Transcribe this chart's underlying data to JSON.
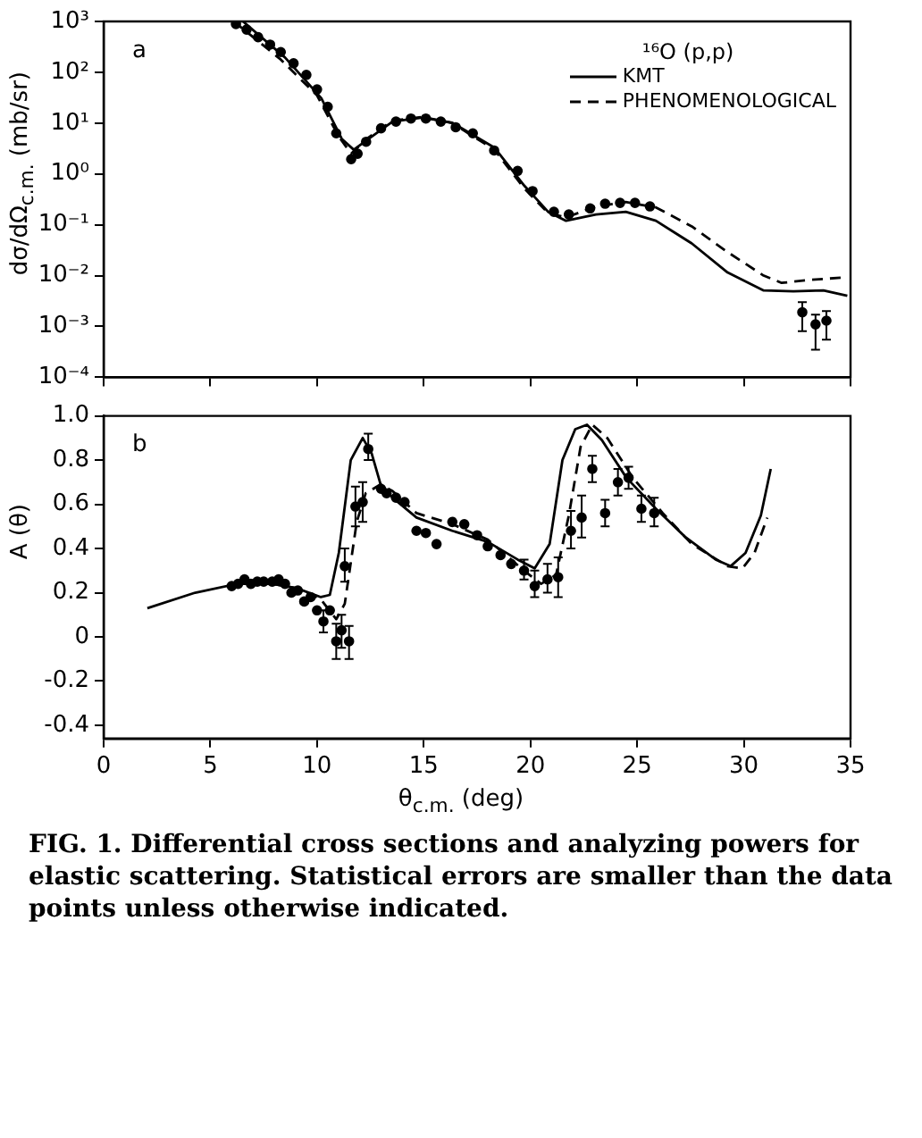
{
  "chart_data": [
    {
      "type": "line",
      "ylabel": "dσ/dΩ$_{c.m.}$ (mb/sr)",
      "legend_title": "¹⁶O (p,p)",
      "legend": "top right",
      "log": "y",
      "grid": false,
      "tick_labels": "y",
      "annotations": [
        "a"
      ],
      "xlim": [
        0,
        35
      ],
      "xticks": [
        0,
        5,
        10,
        15,
        20,
        25,
        30,
        35
      ],
      "ylim": [
        0.0001,
        1000
      ],
      "yticks": [
        {
          "value": 1000,
          "label": "10³"
        },
        {
          "value": 100,
          "label": "10²"
        },
        {
          "value": 10,
          "label": "10¹"
        },
        {
          "value": 1,
          "label": "10⁰"
        },
        {
          "value": 0.1,
          "label": "10⁻¹"
        },
        {
          "value": 0.01,
          "label": "10⁻²"
        },
        {
          "value": 0.001,
          "label": "10⁻³"
        },
        {
          "value": 0.0001,
          "label": "10⁻⁴"
        }
      ],
      "series": [
        {
          "name": "KMT",
          "color": "#000000",
          "line_style": "solid",
          "marker": "none",
          "x": [
            6.53,
            8.5,
            10.2,
            11.16,
            11.72,
            12.42,
            13.54,
            14.94,
            16.34,
            18.31,
            19.71,
            20.83,
            21.67,
            23.07,
            24.47,
            25.88,
            27.56,
            29.24,
            30.93,
            32.32,
            33.73,
            34.85
          ],
          "values": [
            1000,
            195,
            31,
            4.9,
            3.0,
            4.9,
            10.7,
            12.9,
            10.2,
            3.3,
            0.59,
            0.18,
            0.12,
            0.16,
            0.18,
            0.12,
            0.043,
            0.0115,
            0.0051,
            0.0049,
            0.0051,
            0.004
          ]
        },
        {
          "name": "PHENOMENOLOGICAL",
          "color": "#000000",
          "line_style": "dashed",
          "marker": "none",
          "x": [
            6.1,
            8.3,
            10.0,
            11.0,
            11.6,
            12.3,
            13.54,
            14.94,
            16.34,
            18.31,
            19.71,
            20.83,
            21.67,
            23.07,
            24.47,
            25.88,
            27.56,
            29.24,
            30.93,
            31.77,
            33.17,
            34.85
          ],
          "values": [
            1000,
            178,
            35,
            5.6,
            2.5,
            4.8,
            11.2,
            13.2,
            10,
            3.0,
            0.52,
            0.17,
            0.14,
            0.23,
            0.28,
            0.22,
            0.093,
            0.029,
            0.01,
            0.0072,
            0.0083,
            0.0093
          ]
        },
        {
          "type": "scatter",
          "color": "#000000",
          "marker": "circle",
          "x": [
            6.2,
            6.7,
            7.24,
            7.8,
            8.3,
            8.9,
            9.5,
            10.0,
            10.5,
            10.9,
            11.6,
            11.9,
            12.3,
            13.0,
            13.7,
            14.4,
            15.1,
            15.8,
            16.5,
            17.3,
            18.3,
            19.4,
            20.1,
            21.1,
            21.8,
            22.8,
            23.5,
            24.2,
            24.9,
            25.6,
            32.74,
            33.36,
            33.87
          ],
          "values": [
            890,
            690,
            490,
            350,
            250,
            150,
            89,
            46,
            21,
            6.3,
            1.95,
            2.5,
            4.3,
            7.9,
            10.7,
            12.3,
            12.3,
            10.7,
            8.3,
            6.3,
            2.9,
            1.15,
            0.46,
            0.18,
            0.16,
            0.21,
            0.26,
            0.27,
            0.27,
            0.23,
            0.0019,
            0.0011,
            0.0013
          ],
          "errors": [
            null,
            null,
            null,
            null,
            null,
            null,
            null,
            null,
            null,
            null,
            null,
            null,
            null,
            null,
            null,
            null,
            null,
            null,
            null,
            null,
            null,
            null,
            null,
            null,
            null,
            null,
            null,
            null,
            null,
            null,
            [
              0.00081,
              0.003
            ],
            [
              0.00035,
              0.0017
            ],
            [
              0.00055,
              0.002
            ]
          ]
        }
      ]
    },
    {
      "type": "line",
      "ylabel": "A (θ)",
      "xlabel": "θ$_{c.m.}$ (deg)",
      "grid": false,
      "annotations": [
        "b",
        "FIG. 1. Differential cross sections and analyzing powers for elastic scattering. Statistical errors are smaller than the data points unless otherwise indicated."
      ],
      "xlim": [
        0,
        35
      ],
      "xticks": [
        0,
        5,
        10,
        15,
        20,
        25,
        30,
        35
      ],
      "ylim": [
        -0.46,
        1.0
      ],
      "yticks": [
        {
          "value": 1.0,
          "label": "1.0"
        },
        0.8,
        0.6,
        0.4,
        0.2,
        0,
        -0.2,
        -0.4
      ],
      "series": [
        {
          "color": "#000000",
          "line_style": "solid",
          "marker": "none",
          "x": [
            2.05,
            4.29,
            6.25,
            7.93,
            9.06,
            10.18,
            10.6,
            11.02,
            11.58,
            12.14,
            12.56,
            12.98,
            13.54,
            14.66,
            16.34,
            18.0,
            19.4,
            20.2,
            20.9,
            21.5,
            22.1,
            22.65,
            23.35,
            24.5,
            25.88,
            27.28,
            28.68,
            29.38,
            30.08,
            30.8,
            31.26
          ],
          "values": [
            0.13,
            0.2,
            0.24,
            0.24,
            0.22,
            0.18,
            0.19,
            0.38,
            0.8,
            0.9,
            0.83,
            0.69,
            0.63,
            0.54,
            0.48,
            0.43,
            0.35,
            0.31,
            0.42,
            0.8,
            0.94,
            0.96,
            0.89,
            0.72,
            0.58,
            0.45,
            0.35,
            0.32,
            0.38,
            0.55,
            0.76
          ]
        },
        {
          "color": "#000000",
          "line_style": "dashed",
          "marker": "none",
          "x": [
            6.25,
            7.93,
            9.06,
            10.18,
            10.9,
            11.3,
            11.86,
            12.28,
            12.98,
            13.54,
            14.66,
            16.34,
            18.0,
            19.7,
            20.5,
            21.2,
            21.8,
            22.35,
            22.9,
            23.6,
            24.8,
            26.2,
            27.56,
            29.24,
            29.94,
            30.5,
            31.1
          ],
          "values": [
            0.24,
            0.24,
            0.22,
            0.17,
            0.08,
            0.15,
            0.52,
            0.65,
            0.69,
            0.66,
            0.56,
            0.51,
            0.44,
            0.3,
            0.24,
            0.28,
            0.55,
            0.86,
            0.96,
            0.9,
            0.72,
            0.56,
            0.42,
            0.32,
            0.31,
            0.38,
            0.54
          ]
        },
        {
          "type": "scatter",
          "color": "#000000",
          "marker": "circle",
          "x": [
            6.0,
            6.3,
            6.6,
            6.9,
            7.2,
            7.5,
            7.9,
            8.2,
            8.5,
            8.8,
            9.1,
            9.4,
            9.7,
            10.0,
            10.3,
            10.6,
            10.9,
            11.15,
            11.5,
            11.3,
            11.8,
            12.14,
            12.4,
            13.0,
            13.26,
            13.7,
            14.1,
            14.66,
            15.1,
            15.6,
            16.34,
            16.9,
            17.5,
            18.0,
            18.6,
            19.1,
            19.7,
            20.2,
            20.8,
            21.3,
            21.9,
            22.4,
            22.9,
            23.5,
            24.1,
            24.6,
            25.2,
            25.8
          ],
          "values": [
            0.23,
            0.24,
            0.26,
            0.24,
            0.25,
            0.25,
            0.25,
            0.26,
            0.24,
            0.2,
            0.21,
            0.16,
            0.18,
            0.12,
            0.07,
            0.12,
            -0.02,
            0.03,
            -0.02,
            0.32,
            0.59,
            0.61,
            0.85,
            0.67,
            0.65,
            0.63,
            0.61,
            0.48,
            0.47,
            0.42,
            0.52,
            0.51,
            0.46,
            0.41,
            0.37,
            0.33,
            0.3,
            0.23,
            0.26,
            0.27,
            0.48,
            0.54,
            0.76,
            0.56,
            0.7,
            0.72,
            0.58,
            0.56
          ],
          "errors": [
            null,
            null,
            null,
            null,
            null,
            null,
            null,
            null,
            null,
            null,
            null,
            null,
            null,
            null,
            [
              0.02,
              0.12
            ],
            null,
            [
              -0.1,
              0.06
            ],
            [
              -0.05,
              0.1
            ],
            [
              -0.1,
              0.05
            ],
            [
              0.25,
              0.4
            ],
            [
              0.5,
              0.68
            ],
            [
              0.52,
              0.7
            ],
            [
              0.8,
              0.92
            ],
            null,
            null,
            null,
            null,
            null,
            null,
            null,
            null,
            null,
            null,
            null,
            null,
            null,
            [
              0.26,
              0.35
            ],
            [
              0.18,
              0.3
            ],
            [
              0.2,
              0.33
            ],
            [
              0.18,
              0.36
            ],
            [
              0.4,
              0.57
            ],
            [
              0.45,
              0.64
            ],
            [
              0.7,
              0.82
            ],
            [
              0.5,
              0.62
            ],
            [
              0.64,
              0.76
            ],
            [
              0.67,
              0.77
            ],
            [
              0.52,
              0.64
            ],
            [
              0.5,
              0.63
            ]
          ]
        }
      ]
    }
  ]
}
